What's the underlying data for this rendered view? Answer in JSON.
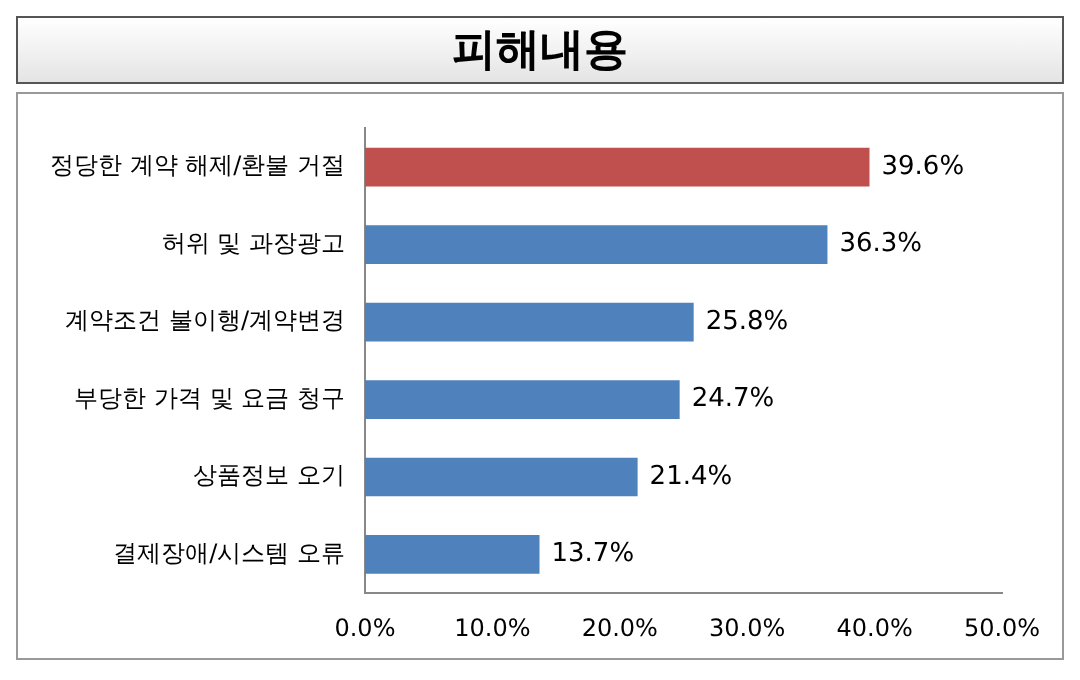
{
  "chart_data": {
    "type": "bar",
    "orientation": "horizontal",
    "title": "피해내용",
    "categories": [
      "정당한 계약 해제/환불 거절",
      "허위 및 과장광고",
      "계약조건 불이행/계약변경",
      "부당한 가격 및 요금 청구",
      "상품정보 오기",
      "결제장애/시스템 오류"
    ],
    "values": [
      39.6,
      36.3,
      25.8,
      24.7,
      21.4,
      13.7
    ],
    "colors": [
      "#c0504d",
      "#4f81bd",
      "#4f81bd",
      "#4f81bd",
      "#4f81bd",
      "#4f81bd"
    ],
    "value_labels": [
      "39.6%",
      "36.3%",
      "25.8%",
      "24.7%",
      "21.4%",
      "13.7%"
    ],
    "xlim": [
      0,
      50
    ],
    "xticks": [
      {
        "value": 0,
        "label": "0.0%"
      },
      {
        "value": 10,
        "label": "10.0%"
      },
      {
        "value": 20,
        "label": "20.0%"
      },
      {
        "value": 30,
        "label": "30.0%"
      },
      {
        "value": 40,
        "label": "40.0%"
      },
      {
        "value": 50,
        "label": "50.0%"
      }
    ],
    "grid": false,
    "legend": false
  }
}
